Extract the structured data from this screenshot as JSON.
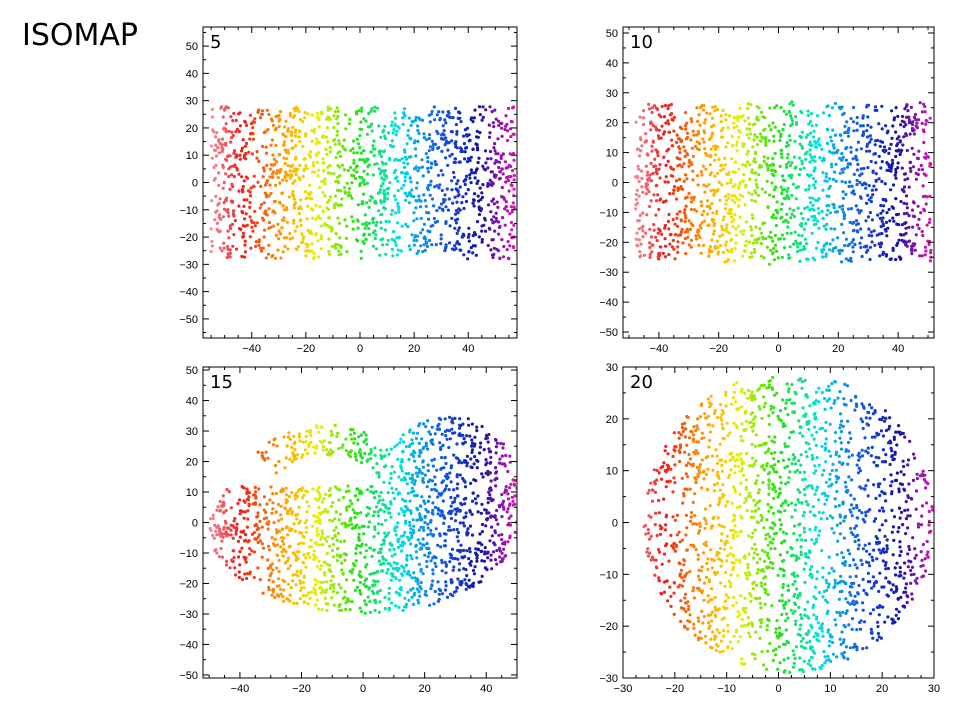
{
  "slide": {
    "title": "ISOMAP"
  },
  "chart_data": [
    {
      "type": "scatter",
      "panel_label": "5",
      "xlim": [
        -58,
        58
      ],
      "ylim": [
        -57,
        57
      ],
      "xticks": [
        -40,
        -20,
        0,
        20,
        40
      ],
      "yticks": [
        -50,
        -40,
        -30,
        -20,
        -10,
        0,
        10,
        20,
        30,
        40,
        50
      ],
      "color_by": "x",
      "cloud": {
        "shape": "band",
        "x_range": [
          -55,
          57
        ],
        "y_range": [
          -28,
          28
        ],
        "n_points": 1500,
        "seed": 11,
        "ripple": 1.0
      },
      "xlabel": "",
      "ylabel": ""
    },
    {
      "type": "scatter",
      "panel_label": "10",
      "xlim": [
        -52,
        52
      ],
      "ylim": [
        -52,
        52
      ],
      "xticks": [
        -40,
        -20,
        0,
        20,
        40
      ],
      "yticks": [
        -50,
        -40,
        -30,
        -20,
        -10,
        0,
        10,
        20,
        30,
        40,
        50
      ],
      "color_by": "x",
      "cloud": {
        "shape": "band",
        "x_range": [
          -48,
          51
        ],
        "y_range": [
          -26,
          26
        ],
        "n_points": 1500,
        "seed": 23,
        "ripple": 0.4
      },
      "xlabel": "",
      "ylabel": ""
    },
    {
      "type": "scatter",
      "panel_label": "15",
      "xlim": [
        -52,
        50
      ],
      "ylim": [
        -51,
        51
      ],
      "xticks": [
        -40,
        -20,
        0,
        20,
        40
      ],
      "yticks": [
        -50,
        -40,
        -30,
        -20,
        -10,
        0,
        10,
        20,
        30,
        40,
        50
      ],
      "color_by": "x",
      "cloud": {
        "shape": "blob",
        "x_range": [
          -50,
          50
        ],
        "y_range": [
          -30,
          35
        ],
        "n_points": 1700,
        "seed": 37,
        "ripple": 0.0
      },
      "xlabel": "",
      "ylabel": ""
    },
    {
      "type": "scatter",
      "panel_label": "20",
      "xlim": [
        -30,
        30
      ],
      "ylim": [
        -30,
        30
      ],
      "xticks": [
        -30,
        -20,
        -10,
        0,
        10,
        20,
        30
      ],
      "yticks": [
        -30,
        -20,
        -10,
        0,
        10,
        20,
        30
      ],
      "color_by": "x",
      "cloud": {
        "shape": "disk",
        "x_range": [
          -28,
          30
        ],
        "y_range": [
          -29,
          28
        ],
        "n_points": 1800,
        "seed": 53,
        "ripple": 0.0
      },
      "xlabel": "",
      "ylabel": ""
    }
  ]
}
